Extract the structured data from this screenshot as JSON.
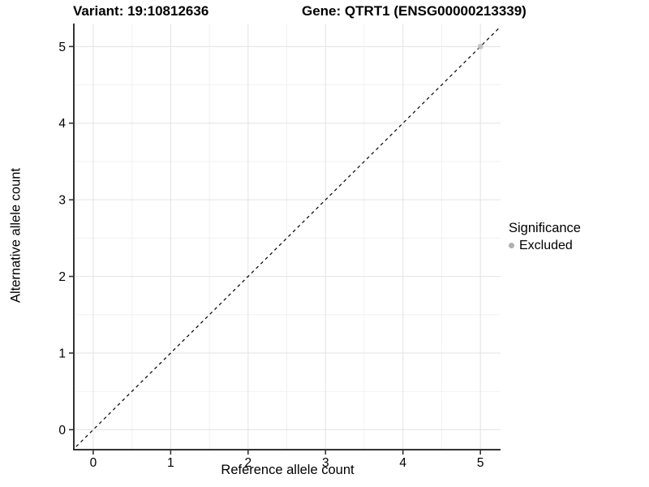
{
  "header": {
    "variant_title": "Variant: 19:10812636",
    "gene_title": "Gene: QTRT1 (ENSG00000213339)"
  },
  "axes": {
    "x_label": "Reference allele count",
    "y_label": "Alternative allele count"
  },
  "legend": {
    "title": "Significance",
    "items": [
      {
        "label": "Excluded",
        "color": "#b0b0b0",
        "marker": "circle"
      }
    ]
  },
  "colors": {
    "background": "#ffffff",
    "grid_major": "#e3e3e3",
    "grid_minor": "#f1f1f1",
    "axis_line": "#333333",
    "text": "#000000",
    "excluded_point": "#c0c0c0",
    "reference_line": "#000000"
  },
  "chart_data": {
    "type": "scatter",
    "title": "Variant: 19:10812636 | Gene: QTRT1 (ENSG00000213339)",
    "xlabel": "Reference allele count",
    "ylabel": "Alternative allele count",
    "xlim": [
      -0.24,
      5.26
    ],
    "ylim": [
      -0.25,
      5.3
    ],
    "x_ticks": [
      0,
      1,
      2,
      3,
      4,
      5
    ],
    "y_ticks": [
      0,
      1,
      2,
      3,
      4,
      5
    ],
    "x_minor": [
      0.5,
      1.5,
      2.5,
      3.5,
      4.5
    ],
    "y_minor": [
      0.5,
      1.5,
      2.5,
      3.5,
      4.5
    ],
    "grid": "major+minor",
    "legend_position": "right",
    "series": [
      {
        "name": "Excluded",
        "color": "#c0c0c0",
        "marker": "circle",
        "points": [
          [
            5,
            5
          ]
        ]
      }
    ],
    "reference_line": {
      "style": "dashed",
      "slope": 1,
      "intercept": 0,
      "color": "#000000"
    }
  }
}
